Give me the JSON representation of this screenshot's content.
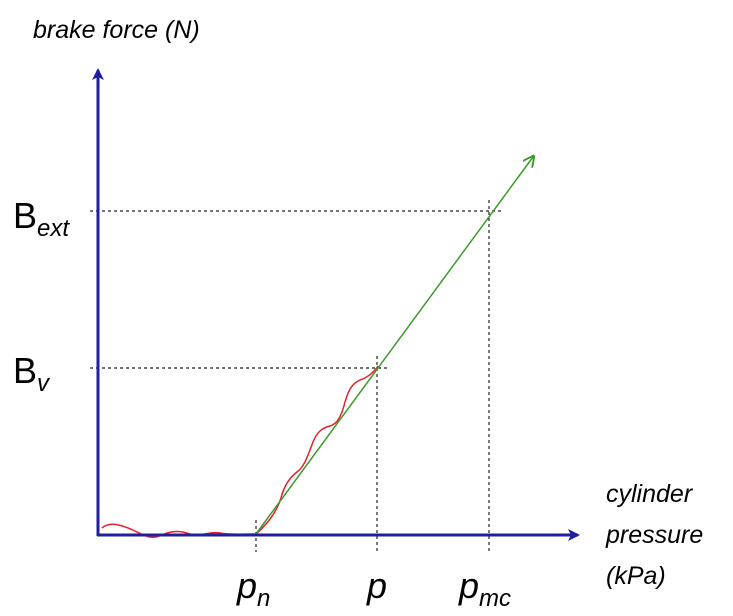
{
  "labels": {
    "y_axis_title": "brake force (N)",
    "x_axis_title": [
      "cylinder",
      "pressure",
      "(kPa)"
    ],
    "y_ticks": [
      {
        "base": "B",
        "sub": "ext"
      },
      {
        "base": "B",
        "sub": "v"
      }
    ],
    "x_ticks": [
      {
        "base": "p",
        "sub": "n"
      },
      {
        "base": "p",
        "sub": ""
      },
      {
        "base": "p",
        "sub": "mc"
      }
    ]
  },
  "colors": {
    "axis": "#1f1fa0",
    "ideal_line": "#3a9a2a",
    "measured_curve": "#e8202a",
    "guide": "#222222"
  }
}
